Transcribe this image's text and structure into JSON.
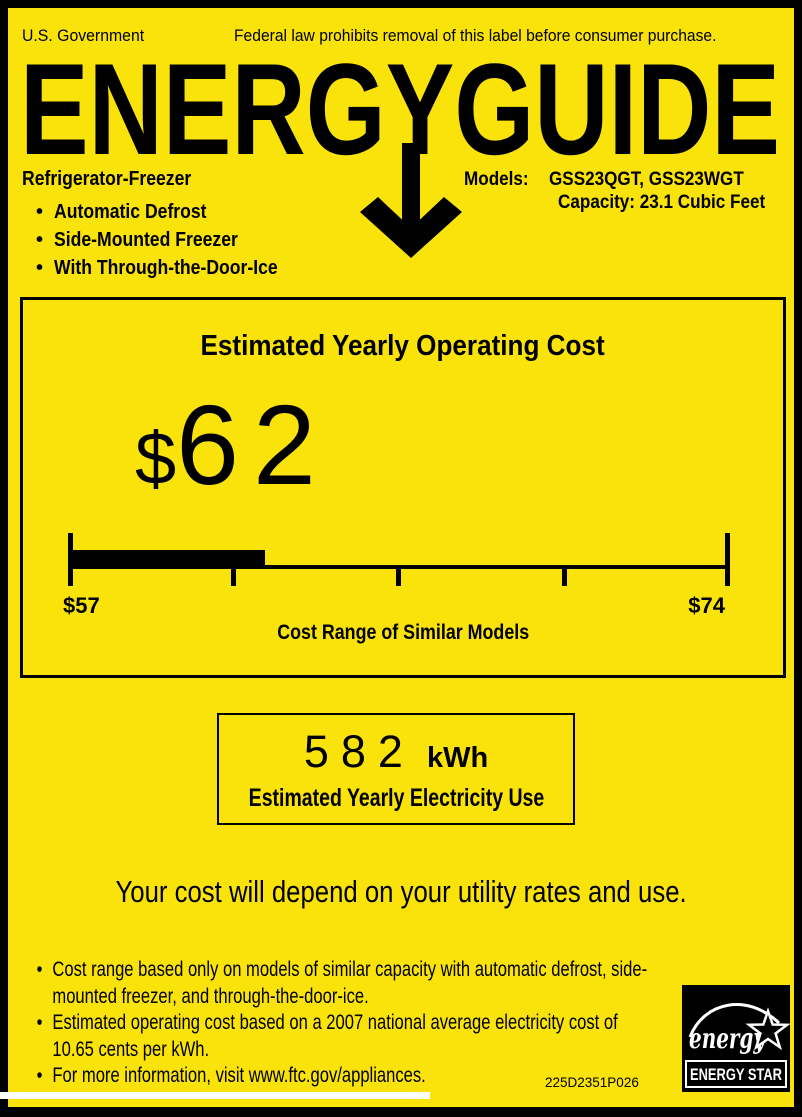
{
  "header": {
    "government": "U.S. Government",
    "federal_notice": "Federal law prohibits removal of this label before consumer purchase."
  },
  "logo": {
    "title": "ENERGYGUIDE"
  },
  "product": {
    "type": "Refrigerator-Freezer",
    "features": [
      "Automatic Defrost",
      "Side-Mounted Freezer",
      "With Through-the-Door-Ice"
    ],
    "models_label": "Models:",
    "models_value": "GSS23QGT, GSS23WGT",
    "capacity_line": "Capacity: 23.1 Cubic Feet"
  },
  "operating_cost": {
    "title": "Estimated Yearly Operating Cost",
    "currency_symbol": "$",
    "value_text": "62",
    "value": 62,
    "range_min": 57,
    "range_max": 74,
    "range_min_label": "$57",
    "range_max_label": "$74",
    "range_caption": "Cost Range of Similar Models"
  },
  "electricity_use": {
    "value": "582",
    "unit": "kWh",
    "caption": "Estimated Yearly Electricity Use"
  },
  "disclaimer": "Your cost will depend on your utility rates and use.",
  "footnotes": [
    "Cost range based only on models of similar capacity with automatic defrost, side-mounted freezer, and through-the-door-ice.",
    "Estimated operating cost based on a 2007 national average electricity cost of 10.65 cents per kWh.",
    "For more information, visit www.ftc.gov/appliances."
  ],
  "part_number": "225D2351P026",
  "energy_star": {
    "script_text": "energy",
    "label": "ENERGY STAR"
  },
  "colors": {
    "background": "#F9E30A",
    "ink": "#000000"
  }
}
